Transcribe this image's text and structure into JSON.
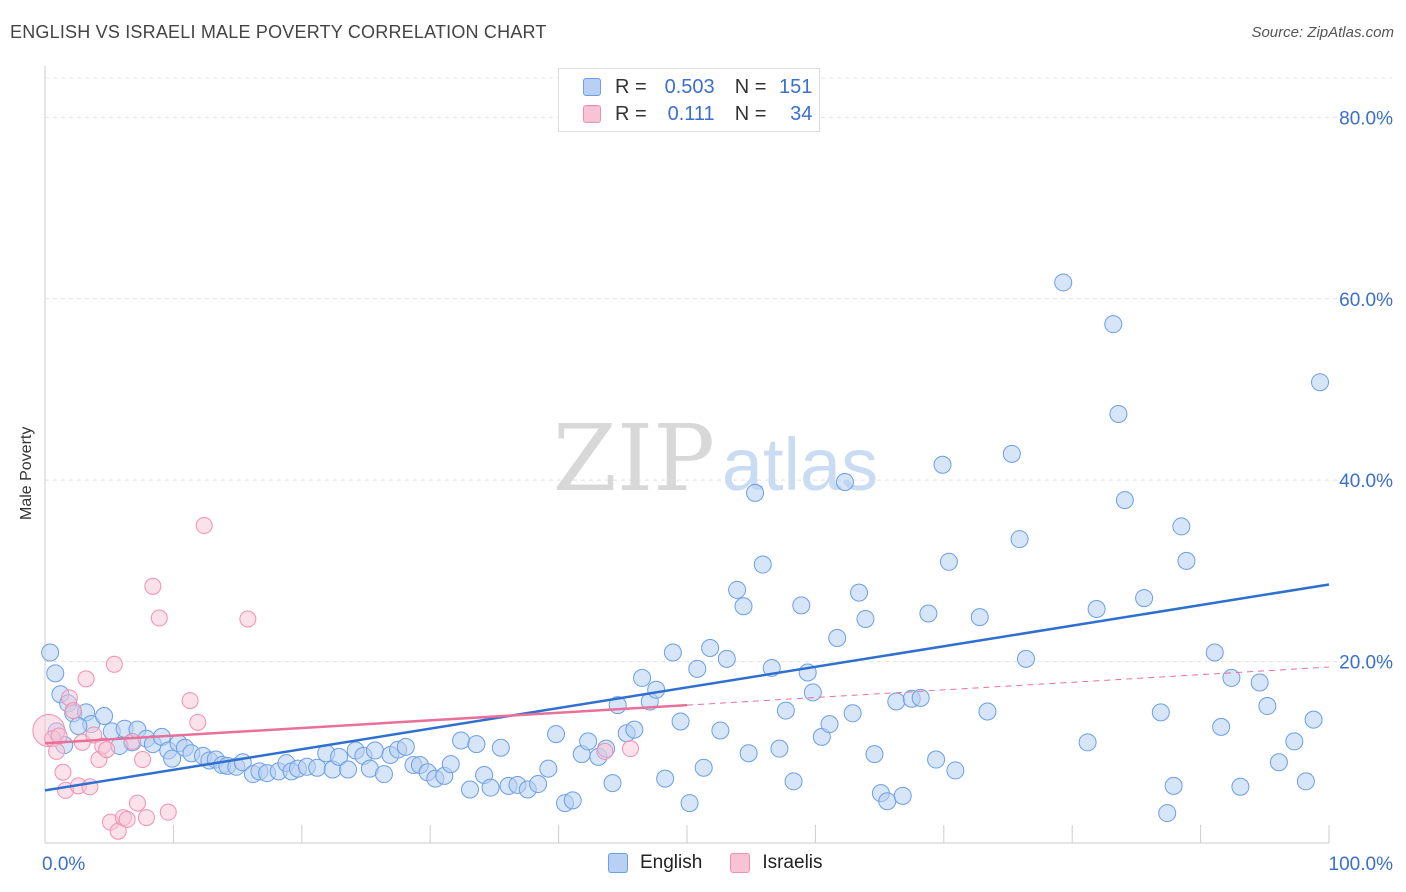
{
  "title": "ENGLISH VS ISRAELI MALE POVERTY CORRELATION CHART",
  "source": "Source: ZipAtlas.com",
  "watermark": {
    "zip": "ZIP",
    "atlas": "atlas"
  },
  "legend_top": [
    {
      "r_label": "R =",
      "r_value": "0.503",
      "n_label": "N =",
      "n_value": "151"
    },
    {
      "r_label": "R =",
      "r_value": "0.111",
      "n_label": "N =",
      "n_value": "34"
    }
  ],
  "legend_bottom": [
    "English",
    "Israelis"
  ],
  "colors": {
    "english": "#6b9fe6",
    "israelis": "#f090b0",
    "english_line": "#2f6fcf",
    "israelis_line": "#e8709a",
    "tick_label": "#3b6fcf"
  },
  "chart_data": {
    "type": "scatter",
    "xlabel": "",
    "ylabel": "Male Poverty",
    "xlim": [
      0,
      100
    ],
    "ylim": [
      0,
      85
    ],
    "x_tick_labels": [
      "0.0%",
      "100.0%"
    ],
    "y_ticks": [
      20,
      40,
      60,
      80
    ],
    "y_tick_labels": [
      "20.0%",
      "40.0%",
      "60.0%",
      "80.0%"
    ],
    "grid": true,
    "legend": "top-center",
    "series": [
      {
        "name": "English",
        "trend": {
          "x": [
            0,
            100
          ],
          "y": [
            5.8,
            28.5
          ]
        },
        "points": [
          [
            0.4,
            21
          ],
          [
            0.8,
            18.7
          ],
          [
            1.2,
            16.4
          ],
          [
            1.8,
            15.4
          ],
          [
            2.2,
            14.3
          ],
          [
            3.2,
            14.4
          ],
          [
            3.6,
            13.1
          ],
          [
            4.6,
            14
          ],
          [
            5.2,
            12.3
          ],
          [
            6.2,
            12.6
          ],
          [
            6.8,
            11.1
          ],
          [
            7.2,
            12.5
          ],
          [
            7.9,
            11.5
          ],
          [
            8.4,
            10.9
          ],
          [
            9.1,
            11.7
          ],
          [
            9.6,
            10.2
          ],
          [
            10.4,
            11
          ],
          [
            10.9,
            10.5
          ],
          [
            11.4,
            9.9
          ],
          [
            12.3,
            9.6
          ],
          [
            12.8,
            9.1
          ],
          [
            13.3,
            9.2
          ],
          [
            13.8,
            8.6
          ],
          [
            14.2,
            8.5
          ],
          [
            14.9,
            8.4
          ],
          [
            15.4,
            8.9
          ],
          [
            16.2,
            7.6
          ],
          [
            16.7,
            7.9
          ],
          [
            17.3,
            7.7
          ],
          [
            18.2,
            7.9
          ],
          [
            18.8,
            8.8
          ],
          [
            19.2,
            7.9
          ],
          [
            19.7,
            8.2
          ],
          [
            20.4,
            8.4
          ],
          [
            21.2,
            8.3
          ],
          [
            21.9,
            9.9
          ],
          [
            22.4,
            8.1
          ],
          [
            22.9,
            9.5
          ],
          [
            23.6,
            8.1
          ],
          [
            24.2,
            10.2
          ],
          [
            24.8,
            9.6
          ],
          [
            25.3,
            8.2
          ],
          [
            25.7,
            10.2
          ],
          [
            26.4,
            7.6
          ],
          [
            26.9,
            9.7
          ],
          [
            27.5,
            10.3
          ],
          [
            28.1,
            10.6
          ],
          [
            28.7,
            8.6
          ],
          [
            29.2,
            8.6
          ],
          [
            29.8,
            7.8
          ],
          [
            30.4,
            7.1
          ],
          [
            31.1,
            7.4
          ],
          [
            31.6,
            8.7
          ],
          [
            32.4,
            11.3
          ],
          [
            33.1,
            5.9
          ],
          [
            33.6,
            10.9
          ],
          [
            34.2,
            7.5
          ],
          [
            34.7,
            6.1
          ],
          [
            35.5,
            10.5
          ],
          [
            36.1,
            6.3
          ],
          [
            36.8,
            6.4
          ],
          [
            37.6,
            5.9
          ],
          [
            38.4,
            6.5
          ],
          [
            39.2,
            8.2
          ],
          [
            39.8,
            12
          ],
          [
            40.5,
            4.4
          ],
          [
            41.1,
            4.7
          ],
          [
            41.8,
            9.8
          ],
          [
            42.3,
            11.2
          ],
          [
            43.1,
            9.5
          ],
          [
            43.7,
            10.4
          ],
          [
            44.2,
            6.6
          ],
          [
            44.6,
            15.2
          ],
          [
            45.3,
            12.1
          ],
          [
            45.9,
            12.5
          ],
          [
            46.5,
            18.2
          ],
          [
            47.1,
            15.6
          ],
          [
            47.6,
            16.9
          ],
          [
            48.3,
            7.1
          ],
          [
            48.9,
            21
          ],
          [
            49.5,
            13.4
          ],
          [
            50.2,
            4.4
          ],
          [
            50.8,
            19.2
          ],
          [
            51.3,
            8.3
          ],
          [
            51.8,
            21.5
          ],
          [
            52.6,
            12.4
          ],
          [
            53.1,
            20.3
          ],
          [
            53.9,
            27.9
          ],
          [
            54.4,
            26.1
          ],
          [
            54.8,
            9.9
          ],
          [
            55.3,
            38.6
          ],
          [
            55.9,
            30.7
          ],
          [
            56.6,
            19.3
          ],
          [
            57.2,
            10.4
          ],
          [
            57.7,
            14.6
          ],
          [
            58.3,
            6.8
          ],
          [
            58.9,
            26.2
          ],
          [
            59.4,
            18.8
          ],
          [
            59.8,
            16.6
          ],
          [
            60.5,
            11.7
          ],
          [
            61.1,
            13.1
          ],
          [
            61.7,
            22.6
          ],
          [
            62.3,
            39.8
          ],
          [
            62.9,
            14.3
          ],
          [
            63.4,
            27.6
          ],
          [
            63.9,
            24.7
          ],
          [
            64.6,
            9.8
          ],
          [
            65.1,
            5.5
          ],
          [
            65.6,
            4.6
          ],
          [
            66.3,
            15.6
          ],
          [
            66.8,
            5.2
          ],
          [
            67.5,
            15.9
          ],
          [
            68.2,
            16
          ],
          [
            68.8,
            25.3
          ],
          [
            69.4,
            9.2
          ],
          [
            69.9,
            41.7
          ],
          [
            70.4,
            31
          ],
          [
            70.9,
            8
          ],
          [
            72.8,
            24.9
          ],
          [
            73.4,
            14.5
          ],
          [
            75.3,
            42.9
          ],
          [
            75.9,
            33.5
          ],
          [
            76.4,
            20.3
          ],
          [
            79.3,
            61.8
          ],
          [
            81.2,
            11.1
          ],
          [
            81.9,
            25.8
          ],
          [
            83.2,
            57.2
          ],
          [
            83.6,
            47.3
          ],
          [
            84.1,
            37.8
          ],
          [
            85.6,
            27
          ],
          [
            86.9,
            14.4
          ],
          [
            87.4,
            3.3
          ],
          [
            87.9,
            6.3
          ],
          [
            88.5,
            34.9
          ],
          [
            88.9,
            31.1
          ],
          [
            91.1,
            21
          ],
          [
            91.6,
            12.8
          ],
          [
            92.4,
            18.2
          ],
          [
            93.1,
            6.2
          ],
          [
            94.6,
            17.7
          ],
          [
            95.2,
            15.1
          ],
          [
            96.1,
            8.9
          ],
          [
            97.3,
            11.2
          ],
          [
            98.2,
            6.8
          ],
          [
            98.8,
            13.6
          ],
          [
            99.3,
            50.8
          ],
          [
            0.9,
            12.3
          ],
          [
            1.5,
            10.8
          ],
          [
            2.6,
            12.9
          ],
          [
            5.8,
            10.7
          ],
          [
            9.9,
            9.3
          ]
        ]
      },
      {
        "name": "Israelis",
        "trend": {
          "x": [
            0,
            50
          ],
          "y": [
            11,
            15.2
          ]
        },
        "trend_extended": {
          "x": [
            50,
            100
          ],
          "y": [
            15.2,
            19.4
          ]
        },
        "points": [
          [
            0.3,
            12.4
          ],
          [
            0.6,
            11.5
          ],
          [
            0.9,
            10.1
          ],
          [
            1.1,
            11.8
          ],
          [
            1.4,
            7.8
          ],
          [
            1.6,
            5.8
          ],
          [
            1.9,
            16
          ],
          [
            2.2,
            14.6
          ],
          [
            2.6,
            6.3
          ],
          [
            2.9,
            11.1
          ],
          [
            3.2,
            18.1
          ],
          [
            3.5,
            6.2
          ],
          [
            3.8,
            11.9
          ],
          [
            4.2,
            9.2
          ],
          [
            4.5,
            10.7
          ],
          [
            4.8,
            10.3
          ],
          [
            5.1,
            2.3
          ],
          [
            5.4,
            19.7
          ],
          [
            5.7,
            1.3
          ],
          [
            6.1,
            2.8
          ],
          [
            6.4,
            2.6
          ],
          [
            6.8,
            11.2
          ],
          [
            7.2,
            4.4
          ],
          [
            7.6,
            9.2
          ],
          [
            7.9,
            2.8
          ],
          [
            8.4,
            28.3
          ],
          [
            8.9,
            24.8
          ],
          [
            9.6,
            3.4
          ],
          [
            11.3,
            15.7
          ],
          [
            11.9,
            13.3
          ],
          [
            12.4,
            35
          ],
          [
            15.8,
            24.7
          ],
          [
            43.6,
            10.1
          ],
          [
            45.6,
            10.4
          ]
        ]
      }
    ]
  }
}
